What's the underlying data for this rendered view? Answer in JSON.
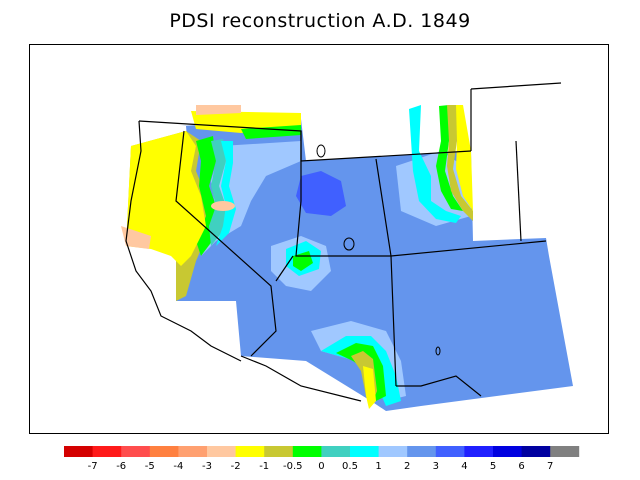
{
  "title": "PDSI reconstruction A.D. 1849",
  "legend": {
    "colors": [
      "#d40000",
      "#ff1a1a",
      "#ff4d4d",
      "#ff8040",
      "#ffa070",
      "#ffc8a0",
      "#ffff00",
      "#c8c832",
      "#00ff00",
      "#40d0c0",
      "#00ffff",
      "#a0c8ff",
      "#6495ed",
      "#4060ff",
      "#2020ff",
      "#0000e0",
      "#0000a0",
      "#808080"
    ],
    "tick_labels": [
      "-7",
      "-6",
      "-5",
      "-4",
      "-3",
      "-2",
      "-1",
      "-0.5",
      "0",
      "0.5",
      "1",
      "2",
      "3",
      "4",
      "5",
      "6",
      "7"
    ]
  }
}
